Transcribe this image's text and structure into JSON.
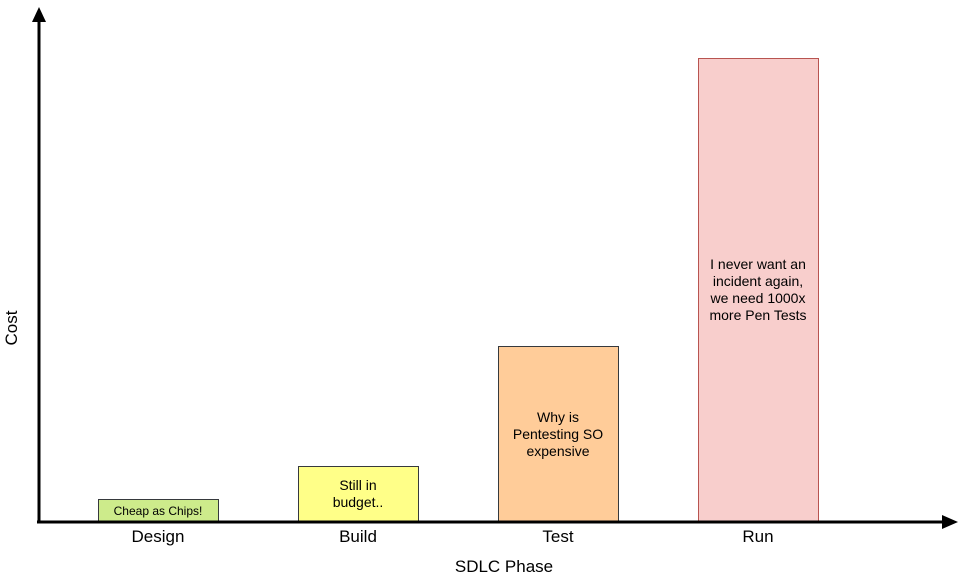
{
  "chart_data": {
    "type": "bar",
    "xlabel": "SDLC Phase",
    "ylabel": "Cost",
    "categories": [
      "Design",
      "Build",
      "Test",
      "Run"
    ],
    "values": [
      5,
      12,
      38,
      100
    ],
    "ylim": [
      0,
      112
    ],
    "grid": false,
    "bar_labels": [
      "Cheap as Chips!",
      "Still in\nbudget..",
      "Why is\nPentesting SO\nexpensive",
      "I never want an\nincident again,\nwe need 1000x\nmore Pen Tests"
    ],
    "colors": {
      "fills": [
        "#cdeb8b",
        "#ffff88",
        "#ffcc99",
        "#f8cecc"
      ],
      "strokes": [
        "#36393d",
        "#36393d",
        "#36393d",
        "#b85450"
      ],
      "axis": "#000000"
    }
  }
}
